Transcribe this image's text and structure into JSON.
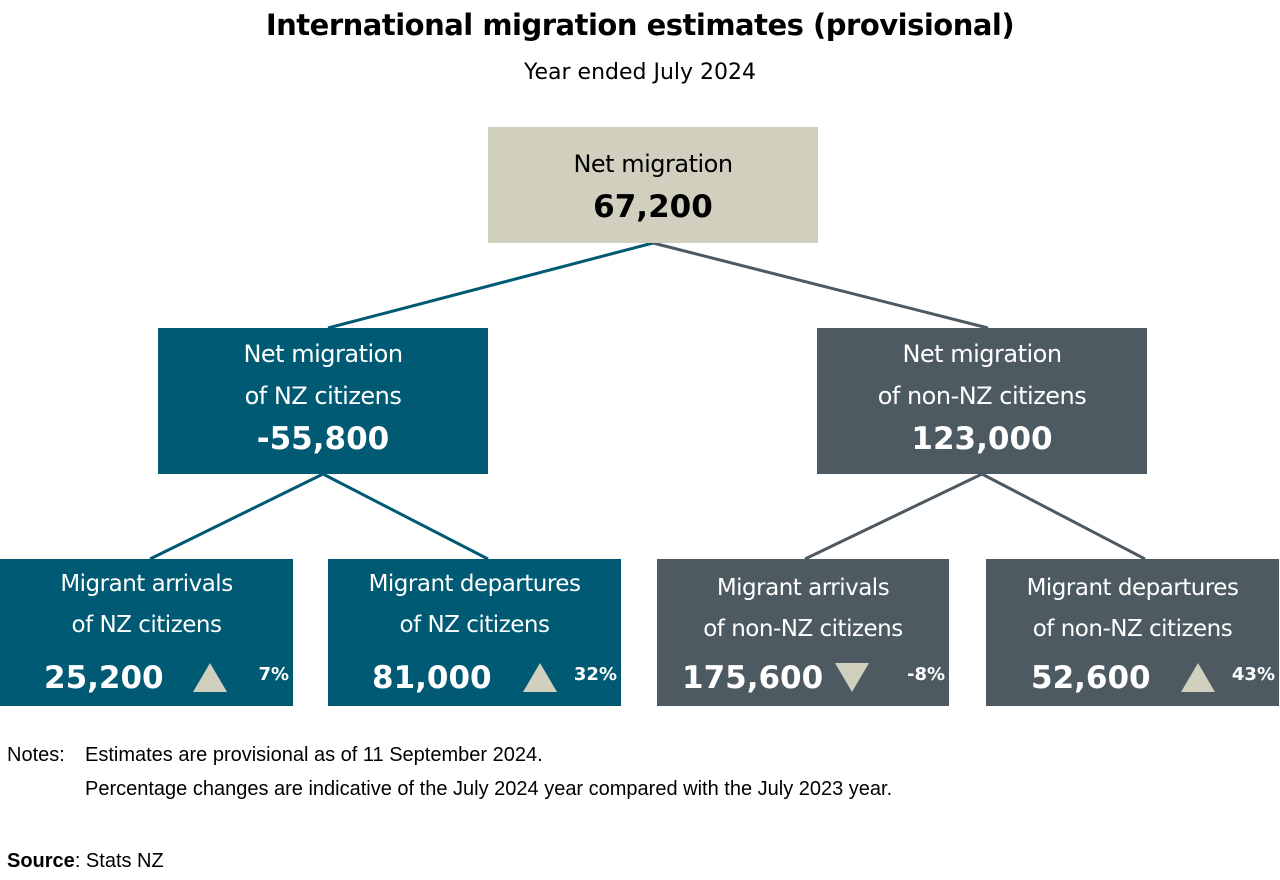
{
  "title": "International migration estimates (provisional)",
  "subtitle": "Year ended July 2024",
  "top": {
    "label": "Net migration",
    "value": "67,200"
  },
  "nz": {
    "label1": "Net migration",
    "label2": "of NZ citizens",
    "value": "-55,800"
  },
  "nonnz": {
    "label1": "Net migration",
    "label2": "of non-NZ citizens",
    "value": "123,000"
  },
  "leaves": [
    {
      "label1": "Migrant arrivals",
      "label2": "of NZ citizens",
      "value": "25,200",
      "change": "7%",
      "direction": "up"
    },
    {
      "label1": "Migrant departures",
      "label2": "of NZ citizens",
      "value": "81,000",
      "change": "32%",
      "direction": "up"
    },
    {
      "label1": "Migrant arrivals",
      "label2": "of non-NZ citizens",
      "value": "175,600",
      "change": "-8%",
      "direction": "down"
    },
    {
      "label1": "Migrant departures",
      "label2": "of non-NZ citizens",
      "value": "52,600",
      "change": "43%",
      "direction": "up"
    }
  ],
  "notes": {
    "label": "Notes:",
    "line1": "Estimates are provisional as of 11 September 2024.",
    "line2": "Percentage changes are indicative of the July 2024 year compared with the July 2023 year."
  },
  "source": {
    "label": "Source",
    "text": ": Stats NZ"
  },
  "colors": {
    "nz": "#005a73",
    "nonnz": "#4d5a61",
    "total": "#d1cfbe"
  }
}
